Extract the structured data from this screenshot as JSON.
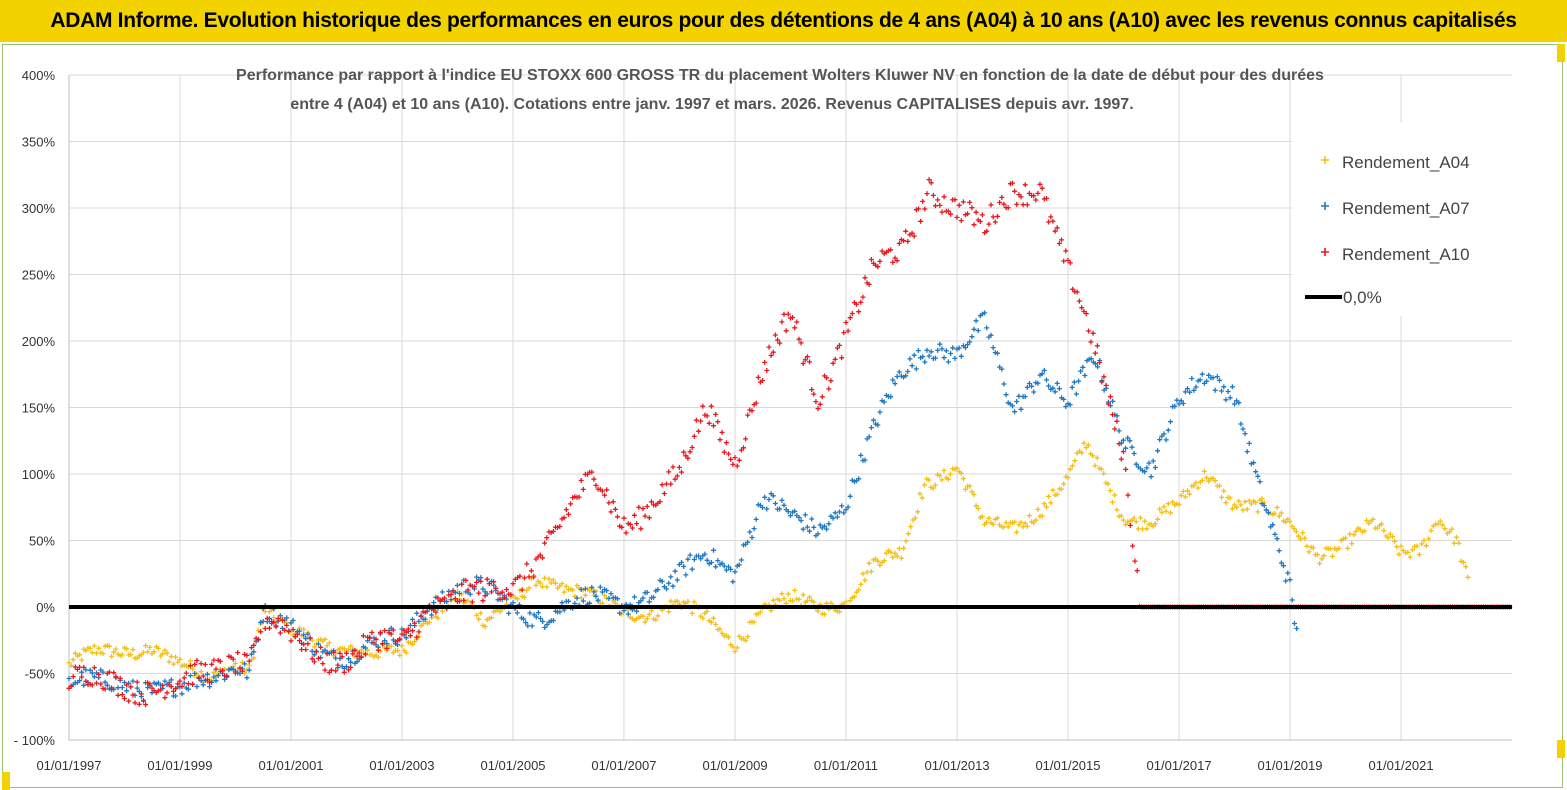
{
  "header": {
    "banner_title": "ADAM Informe. Evolution historique des performances en euros pour des détentions de 4 ans (A04) à 10 ans (A10) avec les revenus connus capitalisés"
  },
  "colors": {
    "banner": "#f2d300",
    "A04": "#f5be14",
    "A07": "#1f78c1",
    "A10": "#e8191e",
    "zero_line": "#000000"
  },
  "chart_data": {
    "type": "scatter",
    "title_lines": [
      "Performance par rapport à l'indice EU STOXX 600 GROSS TR  du placement Wolters Kluwer NV en fonction de la date de début pour des durées",
      "entre 4 (A04) et 10 ans (A10). Cotations entre janv. 1997 et mars. 2026. Revenus CAPITALISES depuis avr. 1997."
    ],
    "x_type": "date",
    "xlim": [
      "1997-01-01",
      "2023-01-01"
    ],
    "ylim": [
      -100,
      400
    ],
    "y_unit": "%",
    "x_ticks": [
      "01/01/1997",
      "01/01/1999",
      "01/01/2001",
      "01/01/2003",
      "01/01/2005",
      "01/01/2007",
      "01/01/2009",
      "01/01/2011",
      "01/01/2013",
      "01/01/2015",
      "01/01/2017",
      "01/01/2019",
      "01/01/2021"
    ],
    "y_ticks": [
      "- 100%",
      "-50%",
      "0%",
      "50%",
      "100%",
      "150%",
      "200%",
      "250%",
      "300%",
      "350%",
      "400%"
    ],
    "grid": true,
    "legend_position": "top-right",
    "legend": [
      "Rendement_A04",
      "Rendement_A07",
      "Rendement_A10",
      "0,0%"
    ],
    "reference_line": {
      "name": "0,0%",
      "y": 0
    },
    "series": [
      {
        "name": "Rendement_A04",
        "x": [
          "1997-01-01",
          "1997-07-01",
          "1998-01-01",
          "1998-07-01",
          "1999-01-01",
          "1999-07-01",
          "2000-01-01",
          "2000-04-01",
          "2000-07-01",
          "2001-01-01",
          "2001-07-01",
          "2002-01-01",
          "2002-07-01",
          "2003-01-01",
          "2003-07-01",
          "2004-01-01",
          "2004-07-01",
          "2005-01-01",
          "2005-06-01",
          "2006-01-01",
          "2006-07-01",
          "2007-01-01",
          "2007-07-01",
          "2008-01-01",
          "2008-07-01",
          "2009-01-01",
          "2009-07-01",
          "2010-01-01",
          "2010-07-01",
          "2011-01-01",
          "2011-07-01",
          "2012-01-01",
          "2012-06-01",
          "2013-01-01",
          "2013-07-01",
          "2014-01-01",
          "2014-07-01",
          "2015-01-01",
          "2015-05-01",
          "2016-01-01",
          "2016-07-01",
          "2017-01-01",
          "2017-07-01",
          "2018-01-01",
          "2018-07-01",
          "2019-01-01",
          "2019-07-01",
          "2020-01-01",
          "2020-07-01",
          "2021-01-01",
          "2021-05-01",
          "2021-09-01",
          "2022-01-01",
          "2022-04-01"
        ],
        "y": [
          -45,
          -35,
          -32,
          -30,
          -45,
          -55,
          -40,
          -45,
          -5,
          -20,
          -25,
          -30,
          -38,
          -35,
          -5,
          10,
          -15,
          5,
          25,
          10,
          5,
          0,
          -5,
          0,
          -8,
          -25,
          -5,
          5,
          2,
          5,
          30,
          40,
          95,
          105,
          60,
          60,
          75,
          95,
          120,
          70,
          65,
          75,
          100,
          80,
          75,
          60,
          40,
          50,
          60,
          40,
          45,
          70,
          50,
          10
        ],
        "scatter": 10
      },
      {
        "name": "Rendement_A07",
        "x": [
          "1997-01-01",
          "1997-07-01",
          "1998-01-01",
          "1998-07-01",
          "1999-01-01",
          "1999-07-01",
          "2000-01-01",
          "2000-04-01",
          "2000-07-01",
          "2001-01-01",
          "2001-07-01",
          "2002-01-01",
          "2002-07-01",
          "2003-01-01",
          "2003-07-01",
          "2004-01-01",
          "2004-07-01",
          "2005-01-01",
          "2005-07-01",
          "2006-01-01",
          "2006-07-01",
          "2007-01-01",
          "2007-07-01",
          "2008-01-01",
          "2008-07-01",
          "2009-01-01",
          "2009-07-01",
          "2010-01-01",
          "2010-07-01",
          "2011-01-01",
          "2011-07-01",
          "2012-01-01",
          "2012-07-01",
          "2013-01-01",
          "2013-07-01",
          "2014-01-01",
          "2014-07-01",
          "2015-01-01",
          "2015-07-01",
          "2016-01-01",
          "2016-07-01",
          "2017-01-01",
          "2017-07-01",
          "2018-01-01",
          "2018-07-01",
          "2019-01-01",
          "2019-03-01"
        ],
        "y": [
          -60,
          -58,
          -55,
          -60,
          -65,
          -55,
          -40,
          -45,
          -5,
          -20,
          -30,
          -35,
          -30,
          -25,
          5,
          15,
          10,
          0,
          -5,
          0,
          5,
          5,
          10,
          20,
          40,
          30,
          80,
          65,
          60,
          80,
          130,
          175,
          200,
          190,
          210,
          150,
          180,
          150,
          185,
          130,
          105,
          150,
          175,
          165,
          80,
          10,
          -35
        ],
        "scatter": 14
      },
      {
        "name": "Rendement_A10",
        "x": [
          "1997-01-01",
          "1997-07-01",
          "1998-01-01",
          "1998-07-01",
          "1999-01-01",
          "1999-07-01",
          "2000-01-01",
          "2000-04-01",
          "2000-07-01",
          "2001-01-01",
          "2001-07-01",
          "2002-01-01",
          "2002-07-01",
          "2003-01-01",
          "2003-07-01",
          "2004-01-01",
          "2004-07-01",
          "2005-01-01",
          "2005-06-01",
          "2006-01-01",
          "2006-07-01",
          "2007-01-01",
          "2007-07-01",
          "2008-01-01",
          "2008-07-01",
          "2009-01-01",
          "2009-07-01",
          "2010-01-01",
          "2010-07-01",
          "2011-01-01",
          "2011-07-01",
          "2012-01-01",
          "2012-07-01",
          "2013-01-01",
          "2013-07-01",
          "2014-01-01",
          "2014-07-01",
          "2015-01-01",
          "2015-06-01",
          "2016-01-01",
          "2016-05-01"
        ],
        "y": [
          -58,
          -57,
          -55,
          -60,
          -62,
          -50,
          -35,
          -40,
          -10,
          -25,
          -35,
          -35,
          -30,
          -30,
          5,
          10,
          5,
          15,
          40,
          70,
          95,
          65,
          80,
          95,
          150,
          115,
          175,
          215,
          160,
          210,
          250,
          265,
          320,
          300,
          280,
          315,
          320,
          250,
          200,
          120,
          0
        ],
        "scatter": 18
      },
      {
        "name": "Rendement_A10",
        "x": [
          "2016-05-01",
          "2023-01-01"
        ],
        "y": [
          0,
          0
        ],
        "scatter": 0,
        "note_flat": true
      }
    ]
  }
}
